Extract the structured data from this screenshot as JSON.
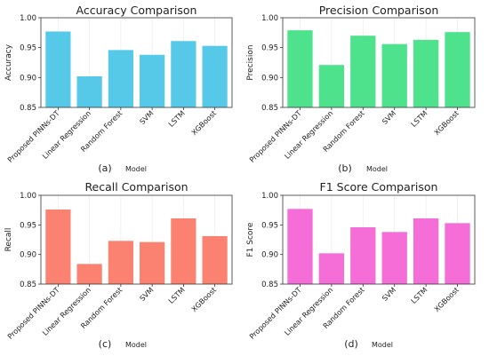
{
  "figure": {
    "panel_labels": [
      "(a)",
      "(b)",
      "(c)",
      "(d)"
    ]
  },
  "chart_data": [
    {
      "type": "bar",
      "title": "Accuracy Comparison",
      "xlabel": "Model",
      "ylabel": "Accuracy",
      "categories": [
        "Proposed PINNs-DT",
        "Linear Regression",
        "Random Forest",
        "SVM",
        "LSTM",
        "XGBoost"
      ],
      "values": [
        0.977,
        0.902,
        0.946,
        0.938,
        0.961,
        0.953
      ],
      "ylim": [
        0.85,
        1.0
      ],
      "yticks": [
        "0.85",
        "0.90",
        "0.95",
        "1.00"
      ],
      "color": "#56c8e8",
      "grid": "vertical"
    },
    {
      "type": "bar",
      "title": "Precision Comparison",
      "xlabel": "Model",
      "ylabel": "Precision",
      "categories": [
        "Proposed PINNs-DT",
        "Linear Regression",
        "Random Forest",
        "SVM",
        "LSTM",
        "XGBoost"
      ],
      "values": [
        0.979,
        0.921,
        0.97,
        0.956,
        0.963,
        0.976
      ],
      "ylim": [
        0.85,
        1.0
      ],
      "yticks": [
        "0.85",
        "0.90",
        "0.95",
        "1.00"
      ],
      "color": "#4ee28c",
      "grid": "vertical"
    },
    {
      "type": "bar",
      "title": "Recall Comparison",
      "xlabel": "Model",
      "ylabel": "Recall",
      "categories": [
        "Proposed PINNs-DT",
        "Linear Regression",
        "Random Forest",
        "SVM",
        "LSTM",
        "XGBoost"
      ],
      "values": [
        0.976,
        0.884,
        0.923,
        0.921,
        0.961,
        0.931
      ],
      "ylim": [
        0.85,
        1.0
      ],
      "yticks": [
        "0.85",
        "0.90",
        "0.95",
        "1.00"
      ],
      "color": "#fb8170",
      "grid": "vertical"
    },
    {
      "type": "bar",
      "title": "F1 Score Comparison",
      "xlabel": "Model",
      "ylabel": "F1 Score",
      "categories": [
        "Proposed PINNs-DT",
        "Linear Regression",
        "Random Forest",
        "SVM",
        "LSTM",
        "XGBoost"
      ],
      "values": [
        0.977,
        0.902,
        0.946,
        0.938,
        0.961,
        0.953
      ],
      "ylim": [
        0.85,
        1.0
      ],
      "yticks": [
        "0.85",
        "0.90",
        "0.95",
        "1.00"
      ],
      "color": "#f56ed8",
      "grid": "vertical"
    }
  ]
}
